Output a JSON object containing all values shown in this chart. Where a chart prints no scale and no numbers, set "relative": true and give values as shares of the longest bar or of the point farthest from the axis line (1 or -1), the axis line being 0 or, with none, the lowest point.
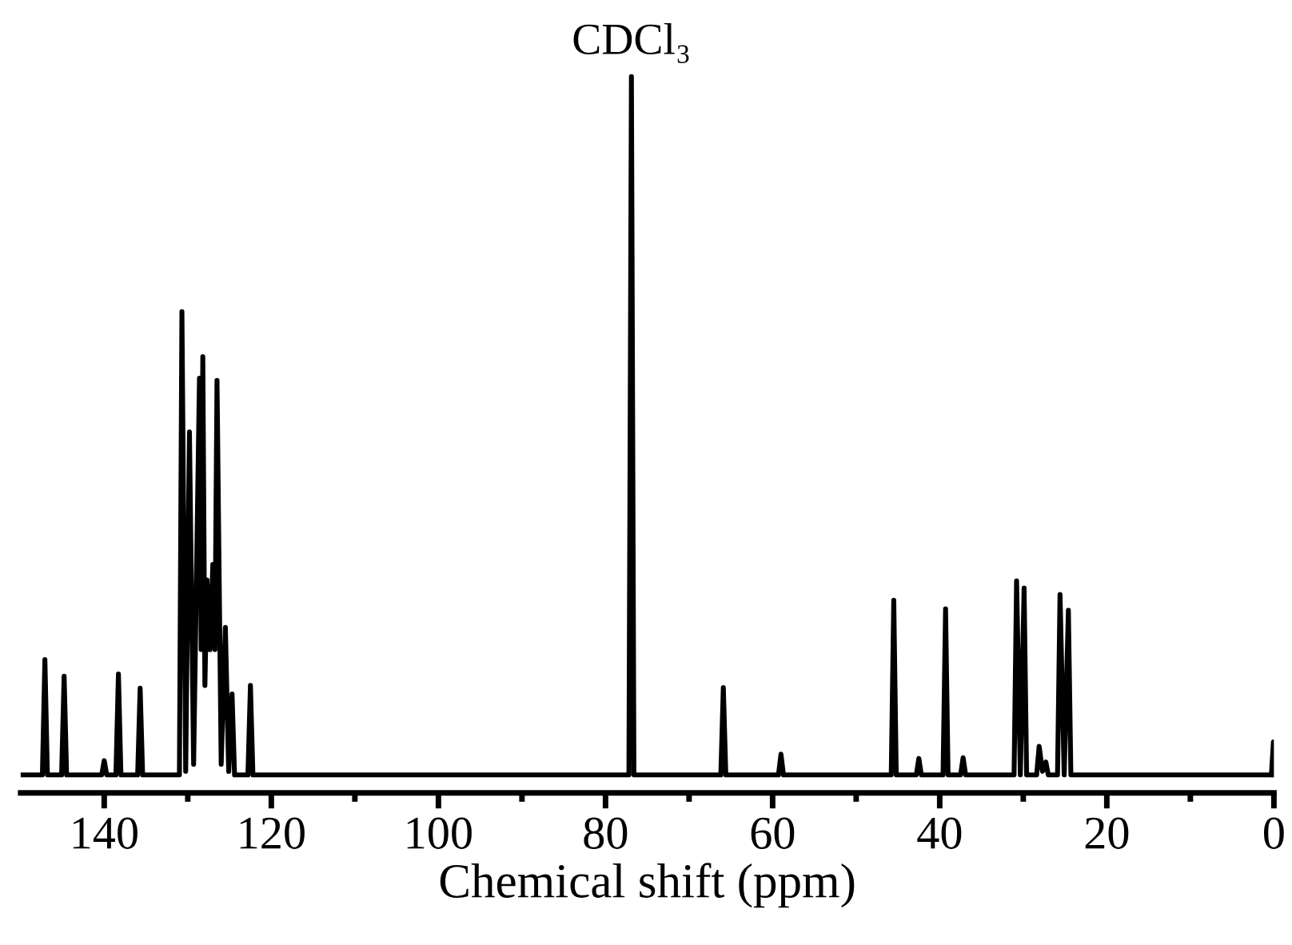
{
  "chart_data": {
    "type": "line",
    "relative": true,
    "xlabel": "Chemical shift (ppm)",
    "xlim": [
      150,
      0
    ],
    "xticks": [
      140,
      {
        "value": 130,
        "label": null
      },
      120,
      {
        "value": 110,
        "label": null
      },
      100,
      {
        "value": 90,
        "label": null
      },
      80,
      {
        "value": 70,
        "label": null
      },
      60,
      {
        "value": 50,
        "label": null
      },
      40,
      {
        "value": 30,
        "label": null
      },
      20,
      {
        "value": 10,
        "label": null
      },
      0
    ],
    "tick_labels": "x",
    "grid": false,
    "legend": false,
    "marker": "none",
    "line_style": "solid",
    "annotations": [
      {
        "text": "CDCl₃",
        "x": 76.9,
        "y": 1.0
      }
    ],
    "series": [
      {
        "color": "#000000",
        "x": [
          150,
          147.4,
          147.1,
          146.8,
          145.1,
          144.8,
          144.5,
          140.3,
          140.0,
          139.7,
          138.6,
          138.3,
          138.0,
          136.0,
          135.7,
          135.4,
          131.0,
          130.7,
          130.25,
          129.8,
          129.3,
          128.6,
          128.4,
          128.2,
          127.95,
          127.7,
          127.35,
          127.0,
          126.75,
          126.5,
          126.0,
          125.5,
          125.1,
          124.7,
          124.4,
          122.8,
          122.5,
          122.2,
          77.2,
          76.9,
          76.6,
          66.2,
          65.9,
          65.6,
          59.3,
          59.0,
          58.7,
          45.8,
          45.5,
          45.2,
          42.8,
          42.5,
          42.2,
          39.6,
          39.3,
          39.0,
          37.5,
          37.2,
          36.9,
          31.1,
          30.8,
          30.35,
          29.9,
          29.6,
          28.4,
          28.1,
          27.7,
          27.3,
          27.0,
          25.9,
          25.6,
          25.1,
          24.6,
          24.3,
          0.3,
          0.06,
          0
        ],
        "values": [
          0.025,
          0.025,
          0.186,
          0.025,
          0.025,
          0.163,
          0.025,
          0.025,
          0.045,
          0.025,
          0.025,
          0.166,
          0.025,
          0.025,
          0.146,
          0.025,
          0.025,
          0.672,
          0.03,
          0.504,
          0.04,
          0.579,
          0.2,
          0.609,
          0.15,
          0.297,
          0.2,
          0.319,
          0.2,
          0.576,
          0.04,
          0.231,
          0.03,
          0.138,
          0.025,
          0.025,
          0.15,
          0.025,
          0.025,
          1.0,
          0.025,
          0.025,
          0.147,
          0.025,
          0.025,
          0.054,
          0.025,
          0.025,
          0.269,
          0.025,
          0.025,
          0.048,
          0.025,
          0.025,
          0.257,
          0.025,
          0.025,
          0.049,
          0.025,
          0.025,
          0.296,
          0.025,
          0.286,
          0.025,
          0.025,
          0.065,
          0.03,
          0.043,
          0.025,
          0.025,
          0.277,
          0.025,
          0.255,
          0.025,
          0.025,
          0.071,
          0.025
        ]
      }
    ]
  }
}
